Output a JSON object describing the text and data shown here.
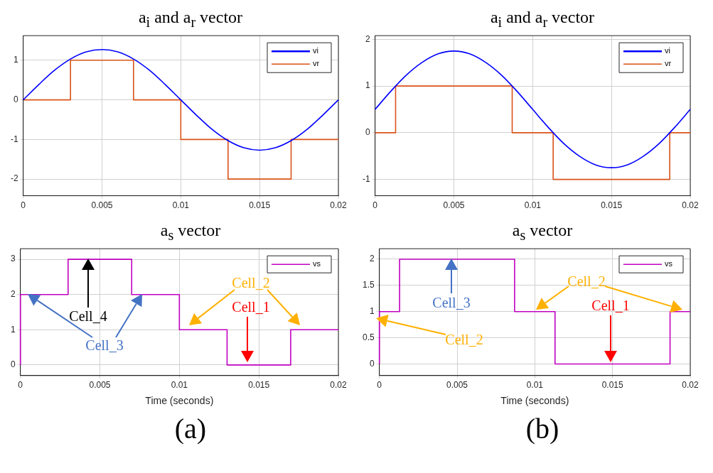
{
  "chart_data": [
    {
      "type": "line",
      "title": "a$_{i}$ and a$_{r}$ vector",
      "xlim": [
        0,
        0.02
      ],
      "xticks": [
        0,
        0.005,
        0.01,
        0.015,
        0.02
      ],
      "ylim": [
        -2.42,
        1.62
      ],
      "yticks": [
        -2,
        -1,
        0,
        1
      ],
      "grid": true,
      "legend": "top right",
      "marker": "none",
      "series": [
        {
          "name": "vi",
          "color": "#0000ff",
          "type": "line",
          "x": [
            0,
            0.001,
            0.002,
            0.003,
            0.004,
            0.005,
            0.006,
            0.007,
            0.008,
            0.009,
            0.01,
            0.011,
            0.012,
            0.013,
            0.014,
            0.015,
            0.016,
            0.017,
            0.018,
            0.019,
            0.02
          ],
          "values": [
            0,
            0.39,
            0.75,
            1.03,
            1.21,
            1.27,
            1.21,
            1.03,
            0.75,
            0.39,
            0,
            -0.39,
            -0.75,
            -1.03,
            -1.21,
            -1.27,
            -1.21,
            -1.03,
            -0.75,
            -0.39,
            0
          ]
        },
        {
          "name": "vr",
          "color": "#d95319",
          "type": "step",
          "x": [
            0,
            0.003,
            0.007,
            0.01,
            0.013,
            0.017,
            0.02
          ],
          "values": [
            0,
            1,
            0,
            -1,
            -2,
            -1,
            -1
          ]
        }
      ]
    },
    {
      "type": "line",
      "title": "a$_{i}$ and a$_{r}$ vector",
      "xlim": [
        0,
        0.02
      ],
      "xticks": [
        0,
        0.005,
        0.01,
        0.015,
        0.02
      ],
      "ylim": [
        -1.35,
        2.08
      ],
      "yticks": [
        -1,
        0,
        1,
        2
      ],
      "grid": true,
      "legend": "top right",
      "marker": "none",
      "series": [
        {
          "name": "vi",
          "color": "#0000ff",
          "type": "line",
          "x": [
            0,
            0.001,
            0.002,
            0.003,
            0.004,
            0.005,
            0.006,
            0.007,
            0.008,
            0.009,
            0.01,
            0.011,
            0.012,
            0.013,
            0.014,
            0.015,
            0.016,
            0.017,
            0.018,
            0.019,
            0.02
          ],
          "values": [
            0.5,
            0.89,
            1.24,
            1.51,
            1.69,
            1.75,
            1.69,
            1.51,
            1.24,
            0.89,
            0.5,
            0.11,
            -0.24,
            -0.51,
            -0.69,
            -0.75,
            -0.69,
            -0.51,
            -0.24,
            0.11,
            0.5
          ]
        },
        {
          "name": "vr",
          "color": "#d95319",
          "type": "step",
          "x": [
            0,
            0.0013,
            0.0087,
            0.0113,
            0.0187,
            0.02
          ],
          "values": [
            0,
            1,
            0,
            -1,
            0,
            0
          ]
        }
      ]
    },
    {
      "type": "line",
      "title": "a$_{s}$ vector",
      "xlabel": "Time (seconds)",
      "xlim": [
        0,
        0.02
      ],
      "xticks": [
        0,
        0.005,
        0.01,
        0.015,
        0.02
      ],
      "ylim": [
        -0.3,
        3.3
      ],
      "yticks": [
        0,
        1,
        2,
        3
      ],
      "grid": true,
      "legend": "top right",
      "marker": "none",
      "series": [
        {
          "name": "vs",
          "color": "#c000c0",
          "type": "step",
          "x": [
            0,
            0,
            0.003,
            0.007,
            0.01,
            0.013,
            0.017,
            0.02
          ],
          "values": [
            0,
            2,
            3,
            2,
            1,
            0,
            1,
            1
          ]
        }
      ],
      "annotations": [
        "Cell_4",
        "Cell_3",
        "Cell_2",
        "Cell_1",
        "(a)"
      ]
    },
    {
      "type": "line",
      "title": "a$_{s}$ vector",
      "xlabel": "Time (seconds)",
      "xlim": [
        0,
        0.02
      ],
      "xticks": [
        0,
        0.005,
        0.01,
        0.015,
        0.02
      ],
      "ylim": [
        -0.22,
        2.2
      ],
      "yticks": [
        0,
        0.5,
        1,
        1.5,
        2
      ],
      "grid": true,
      "legend": "top right",
      "marker": "none",
      "series": [
        {
          "name": "vs",
          "color": "#c000c0",
          "type": "step",
          "x": [
            0,
            0,
            0.0013,
            0.0087,
            0.0113,
            0.0187,
            0.02
          ],
          "values": [
            0,
            1,
            2,
            1,
            0,
            1,
            1
          ]
        }
      ],
      "annotations": [
        "Cell_3",
        "Cell_2",
        "Cell_2",
        "Cell_1",
        "(b)"
      ]
    }
  ]
}
